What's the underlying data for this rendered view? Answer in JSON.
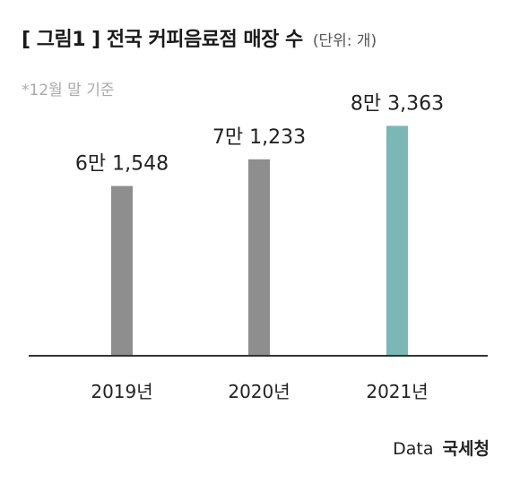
{
  "header": {
    "title": "[ 그림1 ] 전국 커피음료점 매장 수",
    "unit": "(단위: 개)",
    "note": "*12월 말 기준"
  },
  "source": {
    "prefix": "Data",
    "org": "국세청"
  },
  "colors": {
    "bar_default": "#8e8e8e",
    "bar_highlight": "#79b8b4",
    "axis": "#333333"
  },
  "chart_data": {
    "type": "bar",
    "title": "[ 그림1 ] 전국 커피음료점 매장 수",
    "categories": [
      "2019년",
      "2020년",
      "2021년"
    ],
    "values": [
      61548,
      71233,
      83363
    ],
    "value_labels": [
      "6만 1,548",
      "7만 1,233",
      "8만 3,363"
    ],
    "highlight_index": 2,
    "ylim": [
      0,
      90000
    ],
    "grid": false,
    "legend": "none"
  }
}
